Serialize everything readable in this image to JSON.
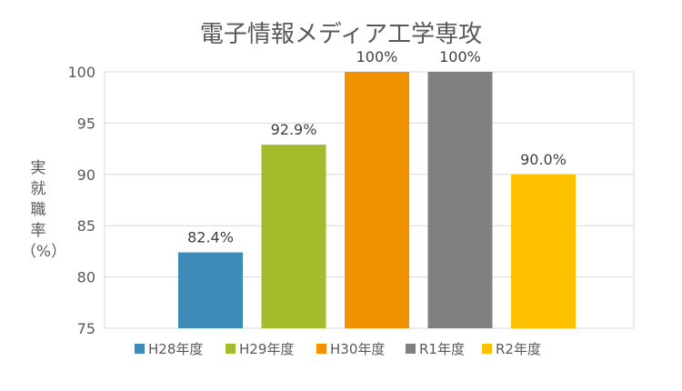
{
  "chart_data": {
    "type": "bar",
    "title": "電子情報メディア工学専攻",
    "ylabel": "実就職率（%）",
    "ylabel_lines": [
      "実",
      "就",
      "職",
      "率",
      "（%）"
    ],
    "xlabel": "",
    "ylim": [
      75,
      100
    ],
    "yticks": [
      75,
      80,
      85,
      90,
      95,
      100
    ],
    "grid": true,
    "legend": "bottom",
    "categories": [
      "H28年度",
      "H29年度",
      "H30年度",
      "R1年度",
      "R2年度"
    ],
    "values": [
      82.4,
      92.9,
      100,
      100,
      90.0
    ],
    "data_labels": [
      "82.4%",
      "92.9%",
      "100%",
      "100%",
      "90.0%"
    ],
    "colors": [
      "#3F8BB8",
      "#A5BB2C",
      "#F39200",
      "#808080",
      "#FFC000"
    ]
  }
}
